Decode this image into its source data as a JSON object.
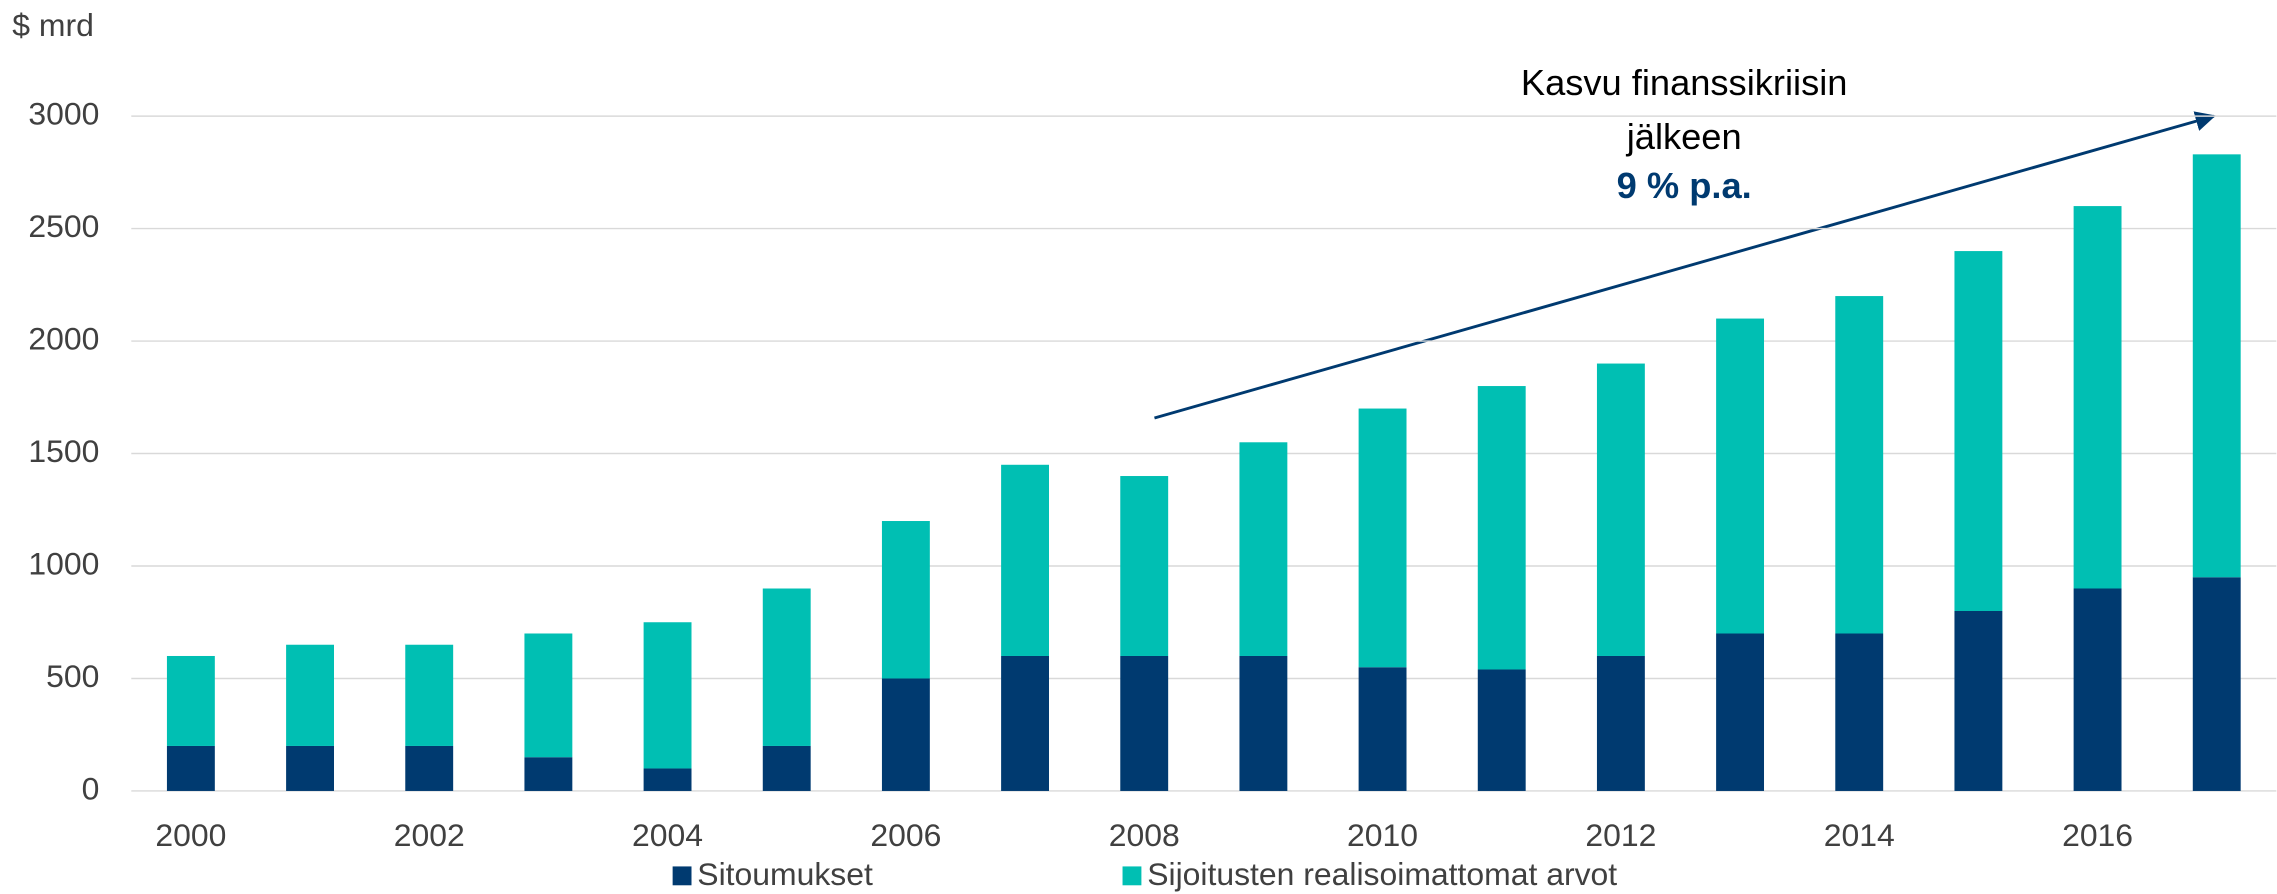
{
  "chart_data": {
    "type": "stacked_bar",
    "y_label": "$ mrd",
    "categories": [
      "2000",
      null,
      "2002",
      null,
      "2004",
      null,
      "2006",
      null,
      "2008",
      null,
      "2010",
      null,
      "2012",
      null,
      "2014",
      null,
      "2016",
      null
    ],
    "series": [
      {
        "name": "Sitoumukset",
        "color": "#003a70",
        "values": [
          200,
          200,
          200,
          150,
          100,
          200,
          500,
          600,
          600,
          600,
          550,
          540,
          600,
          700,
          700,
          800,
          900,
          950
        ]
      },
      {
        "name": "Sijoitusten realisoimattomat arvot",
        "color": "#00bfb3",
        "values": [
          400,
          450,
          450,
          550,
          650,
          700,
          700,
          850,
          800,
          950,
          1150,
          1260,
          1300,
          1400,
          1500,
          1600,
          1700,
          1880
        ]
      }
    ],
    "ylim": [
      0,
      3000
    ],
    "yticks": [
      0,
      500,
      1000,
      1500,
      2000,
      2500,
      3000
    ],
    "grid": true,
    "legend": "bottom",
    "annotation": {
      "lines": [
        "Kasvu finanssikriisin",
        "jälkeen"
      ],
      "highlight": "9 % p.a."
    }
  }
}
